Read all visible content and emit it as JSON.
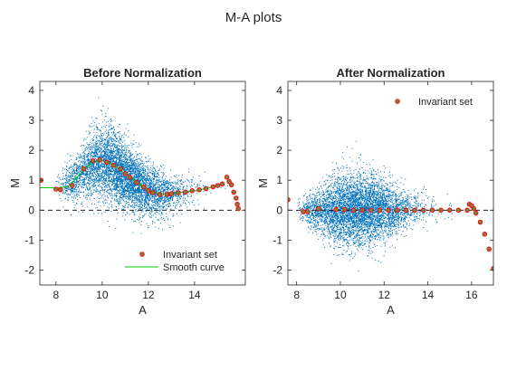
{
  "figure": {
    "title": "M-A plots"
  },
  "colors": {
    "scatter": "#0072bd",
    "invariant": "#ff0000",
    "invariant_fill": "#808040",
    "smooth": "#00cc00",
    "zero_line": "#000000"
  },
  "chart_data": [
    {
      "type": "scatter",
      "title": "Before Normalization",
      "xlabel": "A",
      "ylabel": "M",
      "xlim": [
        7.3,
        16.2
      ],
      "ylim": [
        -2.5,
        4.3
      ],
      "xticks": [
        8,
        10,
        12,
        14
      ],
      "yticks": [
        -2,
        -1,
        0,
        1,
        2,
        3,
        4
      ],
      "zero_line": {
        "y": 0,
        "style": "dashed"
      },
      "cloud_trend": {
        "a": [
          8.0,
          9.0,
          9.6,
          10.0,
          10.5,
          11.0,
          11.5,
          12.0,
          12.5,
          13.0,
          13.5,
          14.0,
          14.5,
          15.0,
          15.5
        ],
        "m": [
          0.75,
          1.15,
          1.55,
          1.6,
          1.45,
          1.2,
          0.9,
          0.65,
          0.55,
          0.55,
          0.6,
          0.65,
          0.75,
          0.8,
          0.8
        ],
        "spread": [
          0.2,
          0.4,
          0.55,
          0.65,
          0.6,
          0.55,
          0.5,
          0.45,
          0.4,
          0.35,
          0.3,
          0.3,
          0.25,
          0.2,
          0.15
        ]
      },
      "series": [
        {
          "name": "Invariant set",
          "marker": "circle",
          "x": [
            7.35,
            8.0,
            8.2,
            8.7,
            9.2,
            9.6,
            9.9,
            10.2,
            10.5,
            10.8,
            11.0,
            11.2,
            11.5,
            11.8,
            12.0,
            12.2,
            12.5,
            12.8,
            13.0,
            13.3,
            13.6,
            13.9,
            14.2,
            14.5,
            14.8,
            15.0,
            15.2,
            15.4,
            15.5,
            15.6,
            15.7,
            15.8,
            15.85,
            15.9
          ],
          "y": [
            1.0,
            0.7,
            0.68,
            0.82,
            1.38,
            1.65,
            1.68,
            1.6,
            1.5,
            1.38,
            1.22,
            1.1,
            0.92,
            0.78,
            0.65,
            0.58,
            0.52,
            0.52,
            0.55,
            0.58,
            0.6,
            0.65,
            0.68,
            0.72,
            0.78,
            0.82,
            0.88,
            1.1,
            0.95,
            0.85,
            0.6,
            0.4,
            0.2,
            0.05
          ]
        },
        {
          "name": "Smooth curve",
          "line": true,
          "x": [
            7.3,
            8.0,
            8.5,
            8.8,
            9.2,
            9.6,
            10.0,
            10.5,
            11.0,
            11.5,
            12.0,
            12.5,
            13.0,
            13.5,
            14.0,
            14.5,
            15.0,
            15.3
          ],
          "y": [
            0.75,
            0.75,
            0.78,
            1.0,
            1.35,
            1.62,
            1.65,
            1.5,
            1.22,
            0.92,
            0.68,
            0.55,
            0.55,
            0.6,
            0.65,
            0.72,
            0.82,
            0.85
          ]
        }
      ],
      "legend": {
        "location": "bottom-right"
      }
    },
    {
      "type": "scatter",
      "title": "After Normalization",
      "xlabel": "A",
      "ylabel": "M",
      "xlim": [
        7.6,
        17.0
      ],
      "ylim": [
        -2.5,
        4.3
      ],
      "xticks": [
        8,
        10,
        12,
        14,
        16
      ],
      "yticks": [
        -2,
        -1,
        0,
        1,
        2,
        3,
        4
      ],
      "zero_line": {
        "y": 0,
        "style": "dashed"
      },
      "cloud_trend": {
        "a": [
          8.0,
          9.0,
          9.6,
          10.0,
          10.5,
          11.0,
          11.5,
          12.0,
          12.5,
          13.0,
          13.5,
          14.0,
          14.5,
          15.0,
          15.5
        ],
        "m": [
          0,
          0,
          0,
          0,
          0,
          0,
          0,
          0,
          0,
          0,
          0,
          0,
          0,
          0,
          0
        ],
        "spread": [
          0.2,
          0.35,
          0.5,
          0.6,
          0.62,
          0.6,
          0.55,
          0.48,
          0.42,
          0.36,
          0.3,
          0.28,
          0.24,
          0.2,
          0.15
        ]
      },
      "series": [
        {
          "name": "Invariant set",
          "marker": "circle",
          "x": [
            7.6,
            8.3,
            8.5,
            9.0,
            9.8,
            10.2,
            10.6,
            11.0,
            11.4,
            11.8,
            12.2,
            12.6,
            13.0,
            13.4,
            13.8,
            14.2,
            14.6,
            15.0,
            15.4,
            15.8,
            15.9,
            16.0,
            16.1,
            16.2,
            16.4,
            16.6,
            16.8,
            17.0
          ],
          "y": [
            0.35,
            -0.05,
            -0.05,
            0.05,
            0.02,
            0.02,
            0.0,
            0.0,
            0.0,
            0.0,
            0.0,
            0.0,
            0.0,
            0.0,
            0.0,
            0.0,
            0.0,
            0.0,
            0.0,
            0.0,
            0.2,
            0.15,
            0.05,
            -0.1,
            -0.4,
            -0.8,
            -1.3,
            -1.95
          ]
        }
      ],
      "legend": {
        "location": "top-right"
      }
    }
  ]
}
